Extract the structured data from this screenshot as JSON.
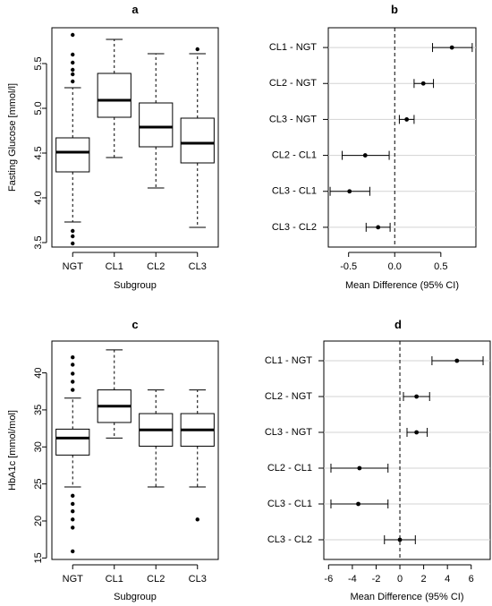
{
  "chart_data": [
    {
      "panel": "a",
      "type": "boxplot",
      "xlabel": "Subgroup",
      "ylabel": "Fasting Glucose [mmol/l]",
      "ylim": [
        3.45,
        5.9
      ],
      "yticks": [
        3.5,
        4.0,
        4.5,
        5.0,
        5.5
      ],
      "ytick_labels": [
        "3.5",
        "4.0",
        "4.5",
        "5.0",
        "5.5"
      ],
      "categories": [
        "NGT",
        "CL1",
        "CL2",
        "CL3"
      ],
      "boxes": [
        {
          "q1": 4.29,
          "median": 4.51,
          "q3": 4.67,
          "whisker_low": 3.73,
          "whisker_high": 5.23,
          "outliers": [
            3.49,
            3.57,
            3.63,
            5.3,
            5.38,
            5.43,
            5.51,
            5.6,
            5.82
          ]
        },
        {
          "q1": 4.9,
          "median": 5.09,
          "q3": 5.39,
          "whisker_low": 4.45,
          "whisker_high": 5.77,
          "outliers": []
        },
        {
          "q1": 4.57,
          "median": 4.79,
          "q3": 5.06,
          "whisker_low": 4.11,
          "whisker_high": 5.61,
          "outliers": []
        },
        {
          "q1": 4.39,
          "median": 4.61,
          "q3": 4.89,
          "whisker_low": 3.67,
          "whisker_high": 5.61,
          "outliers": [
            5.66
          ]
        }
      ]
    },
    {
      "panel": "b",
      "type": "forest",
      "xlabel": "Mean Difference (95% CI)",
      "xlim": [
        -0.72,
        0.88
      ],
      "xticks": [
        -0.5,
        0.0,
        0.5
      ],
      "xtick_labels": [
        "-0.5",
        "0.0",
        "0.5"
      ],
      "reference_line": 0,
      "rows": [
        {
          "label": "CL1 - NGT",
          "estimate": 0.62,
          "low": 0.41,
          "high": 0.84
        },
        {
          "label": "CL2 - NGT",
          "estimate": 0.31,
          "low": 0.21,
          "high": 0.42
        },
        {
          "label": "CL3 - NGT",
          "estimate": 0.13,
          "low": 0.05,
          "high": 0.21
        },
        {
          "label": "CL2 - CL1",
          "estimate": -0.32,
          "low": -0.57,
          "high": -0.06
        },
        {
          "label": "CL3 - CL1",
          "estimate": -0.49,
          "low": -0.7,
          "high": -0.27
        },
        {
          "label": "CL3 - CL2",
          "estimate": -0.18,
          "low": -0.31,
          "high": -0.05
        }
      ]
    },
    {
      "panel": "c",
      "type": "boxplot",
      "xlabel": "Subgroup",
      "ylabel": "HbA1c [mmol/mol]",
      "ylim": [
        14.8,
        44.3
      ],
      "yticks": [
        15,
        20,
        25,
        30,
        35,
        40
      ],
      "ytick_labels": [
        "15",
        "20",
        "25",
        "30",
        "35",
        "40"
      ],
      "categories": [
        "NGT",
        "CL1",
        "CL2",
        "CL3"
      ],
      "boxes": [
        {
          "q1": 28.9,
          "median": 31.2,
          "q3": 32.4,
          "whisker_low": 24.6,
          "whisker_high": 36.6,
          "outliers": [
            15.9,
            19.1,
            20.2,
            21.3,
            22.3,
            23.4,
            37.7,
            38.8,
            39.9,
            41.1,
            42.1
          ]
        },
        {
          "q1": 33.3,
          "median": 35.5,
          "q3": 37.7,
          "whisker_low": 31.2,
          "whisker_high": 43.1,
          "outliers": []
        },
        {
          "q1": 30.1,
          "median": 32.3,
          "q3": 34.5,
          "whisker_low": 24.6,
          "whisker_high": 37.7,
          "outliers": []
        },
        {
          "q1": 30.1,
          "median": 32.3,
          "q3": 34.5,
          "whisker_low": 24.6,
          "whisker_high": 37.7,
          "outliers": [
            20.2
          ]
        }
      ]
    },
    {
      "panel": "d",
      "type": "forest",
      "xlabel": "Mean Difference (95% CI)",
      "xlim": [
        -6.4,
        7.6
      ],
      "xticks": [
        -6,
        -4,
        -2,
        0,
        2,
        4,
        6
      ],
      "xtick_labels": [
        "-6",
        "-4",
        "-2",
        "0",
        "2",
        "4",
        "6"
      ],
      "reference_line": 0,
      "rows": [
        {
          "label": "CL1 - NGT",
          "estimate": 4.8,
          "low": 2.7,
          "high": 7.0
        },
        {
          "label": "CL2 - NGT",
          "estimate": 1.4,
          "low": 0.3,
          "high": 2.5
        },
        {
          "label": "CL3 - NGT",
          "estimate": 1.4,
          "low": 0.6,
          "high": 2.3
        },
        {
          "label": "CL2 - CL1",
          "estimate": -3.4,
          "low": -5.8,
          "high": -1.0
        },
        {
          "label": "CL3 - CL1",
          "estimate": -3.5,
          "low": -5.8,
          "high": -1.0
        },
        {
          "label": "CL3 - CL2",
          "estimate": 0.0,
          "low": -1.3,
          "high": 1.3
        }
      ]
    }
  ]
}
